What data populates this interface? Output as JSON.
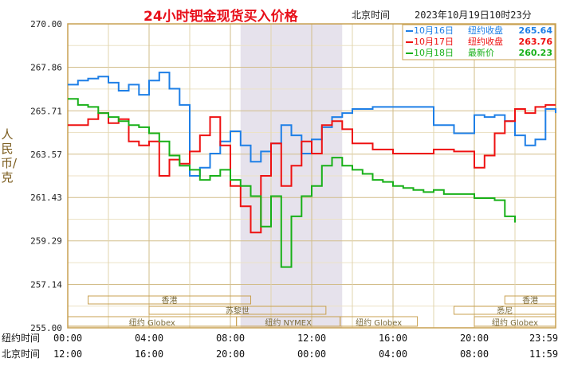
{
  "title": "24小时钯金现货买入价格",
  "beijing_time_label": "北京时间",
  "timestamp": "2023年10月19日10时23分",
  "y_axis_label": "人民币/克",
  "colors": {
    "gold": "#c8a050",
    "grid": "#d2bd8a",
    "blue": "#1e7fe6",
    "red": "#ee1111",
    "green": "#18b018",
    "title_red": "#e8101a",
    "shade": "#e6e2ec"
  },
  "chart_data": {
    "type": "line",
    "title": "24小时钯金现货买入价格",
    "ylabel": "人民币/克",
    "ylim": [
      255.0,
      270.0
    ],
    "y_ticks": [
      "270.00",
      "267.86",
      "265.71",
      "263.57",
      "261.43",
      "259.29",
      "257.14",
      "255.00"
    ],
    "grid": true,
    "legend_position": "top-right",
    "x_range_hours": [
      0,
      24
    ],
    "x_ticks_ny": [
      "00:00",
      "04:00",
      "08:00",
      "12:00",
      "16:00",
      "20:00",
      "23:59"
    ],
    "x_ticks_bj": [
      "12:00",
      "16:00",
      "20:00",
      "00:00",
      "04:00",
      "08:00",
      "11:59"
    ],
    "x_row_labels": {
      "ny": "纽约时间",
      "bj": "北京时间"
    },
    "shaded_range_hours": [
      8.5,
      13.5
    ],
    "legend": [
      {
        "date": "10月16日",
        "label": "纽约收盘",
        "value": "265.64"
      },
      {
        "date": "10月17日",
        "label": "纽约收盘",
        "value": "263.76"
      },
      {
        "date": "10月18日",
        "label": "最新价",
        "value": "260.23"
      }
    ],
    "series": [
      {
        "name": "10月16日",
        "x": [
          0,
          0.5,
          1.0,
          1.5,
          2.0,
          2.5,
          3.0,
          3.5,
          4.0,
          4.5,
          5.0,
          5.5,
          6.0,
          6.5,
          7.0,
          7.5,
          8.0,
          8.5,
          9.0,
          9.5,
          10.0,
          10.5,
          11.0,
          11.5,
          12.0,
          12.5,
          13.0,
          13.5,
          14.0,
          15.0,
          16.0,
          17.0,
          18.0,
          19.0,
          20.0,
          20.5,
          21.0,
          21.5,
          22.0,
          22.5,
          23.0,
          23.5,
          24.0
        ],
        "values": [
          267.0,
          267.2,
          267.3,
          267.4,
          267.1,
          266.7,
          267.0,
          266.5,
          267.2,
          267.6,
          266.8,
          266.0,
          262.5,
          262.9,
          263.6,
          264.2,
          264.7,
          264.0,
          263.2,
          263.7,
          264.1,
          265.0,
          264.5,
          263.6,
          264.3,
          264.9,
          265.4,
          265.6,
          265.8,
          265.9,
          265.9,
          265.9,
          265.0,
          264.6,
          265.5,
          265.4,
          265.5,
          265.2,
          264.5,
          264.0,
          264.3,
          265.8,
          265.6
        ]
      },
      {
        "name": "10月17日",
        "x": [
          0,
          0.5,
          1.0,
          1.5,
          2.0,
          2.5,
          3.0,
          3.5,
          4.0,
          4.5,
          5.0,
          5.5,
          6.0,
          6.5,
          7.0,
          7.5,
          8.0,
          8.5,
          9.0,
          9.5,
          10.0,
          10.5,
          11.0,
          11.5,
          12.0,
          12.5,
          13.0,
          13.5,
          14.0,
          15.0,
          16.0,
          17.0,
          18.0,
          19.0,
          20.0,
          20.5,
          21.0,
          21.5,
          22.0,
          22.5,
          23.0,
          23.5,
          24.0
        ],
        "values": [
          265.0,
          265.0,
          265.3,
          265.6,
          265.1,
          265.3,
          264.2,
          264.0,
          264.2,
          262.5,
          263.3,
          263.1,
          263.7,
          264.5,
          265.4,
          264.0,
          262.0,
          261.0,
          259.7,
          262.5,
          264.1,
          262.0,
          263.0,
          264.2,
          263.6,
          265.0,
          265.2,
          264.8,
          264.1,
          263.8,
          263.6,
          263.6,
          263.8,
          263.7,
          262.9,
          263.5,
          264.6,
          265.2,
          265.8,
          265.6,
          265.9,
          266.0,
          266.0
        ]
      },
      {
        "name": "10月18日",
        "x": [
          0,
          0.5,
          1.0,
          1.5,
          2.0,
          2.5,
          3.0,
          3.5,
          4.0,
          4.5,
          5.0,
          5.5,
          6.0,
          6.5,
          7.0,
          7.5,
          8.0,
          8.5,
          9.0,
          9.5,
          10.0,
          10.5,
          11.0,
          11.5,
          12.0,
          12.5,
          13.0,
          13.5,
          14.0,
          14.5,
          15.0,
          15.5,
          16.0,
          16.5,
          17.0,
          17.5,
          18.0,
          18.5,
          19.0,
          19.5,
          20.0,
          20.5,
          21.0,
          21.5,
          22.0
        ],
        "values": [
          266.3,
          266.0,
          265.9,
          265.6,
          265.4,
          265.2,
          265.0,
          264.9,
          264.6,
          264.2,
          263.5,
          263.0,
          262.8,
          262.3,
          262.5,
          262.8,
          262.3,
          262.0,
          261.5,
          260.0,
          261.5,
          258.0,
          260.5,
          261.5,
          262.0,
          263.0,
          263.4,
          263.0,
          262.8,
          262.6,
          262.3,
          262.2,
          262.0,
          261.9,
          261.8,
          261.7,
          261.8,
          261.6,
          261.6,
          261.6,
          261.4,
          261.4,
          261.3,
          260.5,
          260.2
        ]
      }
    ],
    "sessions": [
      {
        "label": "香港",
        "start": 1,
        "end": 9
      },
      {
        "label": "苏黎世",
        "start": 4,
        "end": 12.7
      },
      {
        "label": "纽约 Globex",
        "start": 0,
        "end": 8.3
      },
      {
        "label": "纽约 NYMEX",
        "start": 8.3,
        "end": 13.4
      },
      {
        "label": "纽约 Globex",
        "start": 13.4,
        "end": 17.2
      },
      {
        "label": "悉尼",
        "start": 19,
        "end": 24
      },
      {
        "label": "香港",
        "start": 21.5,
        "end": 24
      },
      {
        "label": "纽约 Globex",
        "start": 20,
        "end": 24
      }
    ]
  }
}
